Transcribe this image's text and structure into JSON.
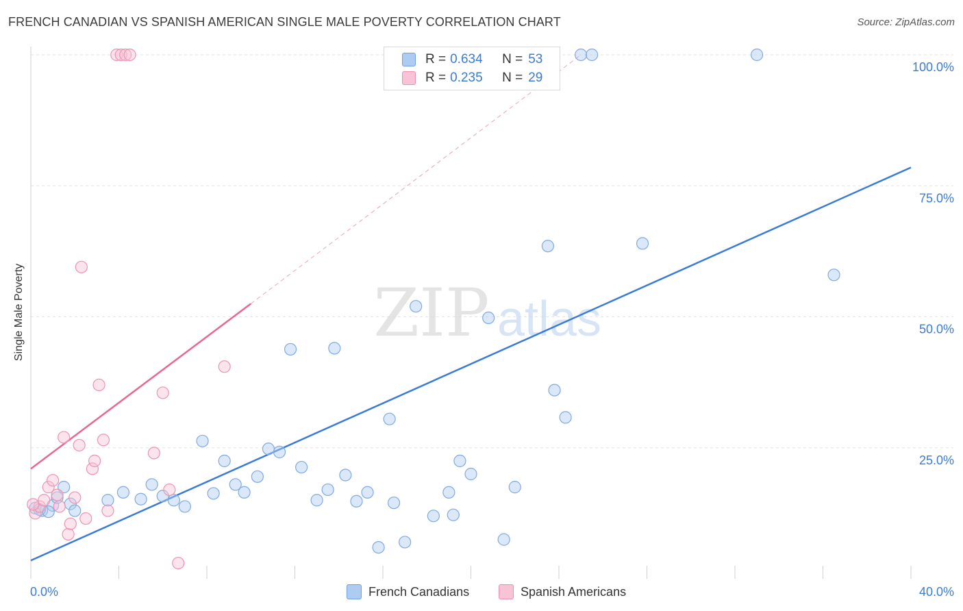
{
  "header": {
    "title": "FRENCH CANADIAN VS SPANISH AMERICAN SINGLE MALE POVERTY CORRELATION CHART",
    "source": "Source: ZipAtlas.com"
  },
  "watermark": {
    "zip": "ZIP",
    "atlas": "atlas"
  },
  "legend": {
    "r_label": "R =",
    "n_label": "N =",
    "rows": [
      {
        "r": "0.634",
        "n": "53",
        "color": "#aecbf2",
        "border": "#6f9fe0"
      },
      {
        "r": "0.235",
        "n": "29",
        "color": "#f8c3d4",
        "border": "#ea8fae"
      }
    ]
  },
  "bottom_legend": [
    {
      "label": "French Canadians",
      "color": "#aecbf2",
      "border": "#6f9fe0"
    },
    {
      "label": "Spanish Americans",
      "color": "#f8c3d4",
      "border": "#ea8fae"
    }
  ],
  "chart_data": {
    "type": "scatter",
    "title": "FRENCH CANADIAN VS SPANISH AMERICAN SINGLE MALE POVERTY CORRELATION CHART",
    "xlabel": "",
    "ylabel": "Single Male Poverty",
    "xlim": [
      0,
      40
    ],
    "ylim": [
      0,
      100
    ],
    "x_tick_labels": [
      {
        "value": 0,
        "label": "0.0%"
      },
      {
        "value": 40,
        "label": "40.0%"
      }
    ],
    "y_tick_labels": [
      {
        "value": 25,
        "label": "25.0%"
      },
      {
        "value": 50,
        "label": "50.0%"
      },
      {
        "value": 75,
        "label": "75.0%"
      },
      {
        "value": 100,
        "label": "100.0%"
      }
    ],
    "grid": true,
    "series": [
      {
        "name": "French Canadians",
        "color": "#3a7bd5",
        "fill": "rgba(174,203,242,0.45)",
        "stroke": "#7fa9e3",
        "trend": {
          "x0": 0,
          "y0": 3.5,
          "x1": 40,
          "y1": 78.5,
          "dashed_extension": false
        },
        "points": [
          [
            0.2,
            13.5
          ],
          [
            0.5,
            13.0
          ],
          [
            1.0,
            14.0
          ],
          [
            1.2,
            15.5
          ],
          [
            1.5,
            17.5
          ],
          [
            1.8,
            14.3
          ],
          [
            2.0,
            13.0
          ],
          [
            3.5,
            15.0
          ],
          [
            4.2,
            16.5
          ],
          [
            5.0,
            15.2
          ],
          [
            5.5,
            18.0
          ],
          [
            6.0,
            15.8
          ],
          [
            6.5,
            15.0
          ],
          [
            7.0,
            13.8
          ],
          [
            7.8,
            26.3
          ],
          [
            8.3,
            16.3
          ],
          [
            8.8,
            22.5
          ],
          [
            9.3,
            18.0
          ],
          [
            9.7,
            16.5
          ],
          [
            10.3,
            19.5
          ],
          [
            10.8,
            24.8
          ],
          [
            11.3,
            24.2
          ],
          [
            11.8,
            43.8
          ],
          [
            12.3,
            21.3
          ],
          [
            13.0,
            15.0
          ],
          [
            13.5,
            17.0
          ],
          [
            13.8,
            44.0
          ],
          [
            14.3,
            19.8
          ],
          [
            14.8,
            14.8
          ],
          [
            15.3,
            16.5
          ],
          [
            15.8,
            6.0
          ],
          [
            16.3,
            30.5
          ],
          [
            16.5,
            14.5
          ],
          [
            17.0,
            7.0
          ],
          [
            17.5,
            52.0
          ],
          [
            18.3,
            12.0
          ],
          [
            19.0,
            16.5
          ],
          [
            19.2,
            12.2
          ],
          [
            19.5,
            22.5
          ],
          [
            20.0,
            20.0
          ],
          [
            20.8,
            49.8
          ],
          [
            21.5,
            7.5
          ],
          [
            22.0,
            17.5
          ],
          [
            23.5,
            63.5
          ],
          [
            23.8,
            36.0
          ],
          [
            24.3,
            30.8
          ],
          [
            25.0,
            100.0
          ],
          [
            25.5,
            100.0
          ],
          [
            27.8,
            64.0
          ],
          [
            33.0,
            100.0
          ],
          [
            36.5,
            58.0
          ],
          [
            0.4,
            13.2
          ],
          [
            0.8,
            12.8
          ]
        ]
      },
      {
        "name": "Spanish Americans",
        "color": "#e8678f",
        "fill": "rgba(248,195,212,0.45)",
        "stroke": "#ec93b1",
        "trend": {
          "x0": 0,
          "y0": 21.0,
          "x1": 10,
          "y1": 52.5,
          "x_ext": 25,
          "y_ext": 100,
          "dashed_extension": true
        },
        "points": [
          [
            0.2,
            12.5
          ],
          [
            0.4,
            13.8
          ],
          [
            0.6,
            15.0
          ],
          [
            0.8,
            17.5
          ],
          [
            1.0,
            18.8
          ],
          [
            1.2,
            16.0
          ],
          [
            1.3,
            13.8
          ],
          [
            1.5,
            27.0
          ],
          [
            1.7,
            8.5
          ],
          [
            1.8,
            10.5
          ],
          [
            2.0,
            15.5
          ],
          [
            2.2,
            25.5
          ],
          [
            2.3,
            59.5
          ],
          [
            2.5,
            11.5
          ],
          [
            2.8,
            21.0
          ],
          [
            2.9,
            22.5
          ],
          [
            3.1,
            37.0
          ],
          [
            3.3,
            26.5
          ],
          [
            3.5,
            13.0
          ],
          [
            3.9,
            100.0
          ],
          [
            4.1,
            100.0
          ],
          [
            4.3,
            100.0
          ],
          [
            4.5,
            100.0
          ],
          [
            5.6,
            24.0
          ],
          [
            6.0,
            35.5
          ],
          [
            6.3,
            17.0
          ],
          [
            6.7,
            3.0
          ],
          [
            8.8,
            40.5
          ],
          [
            0.1,
            14.2
          ]
        ]
      }
    ]
  }
}
